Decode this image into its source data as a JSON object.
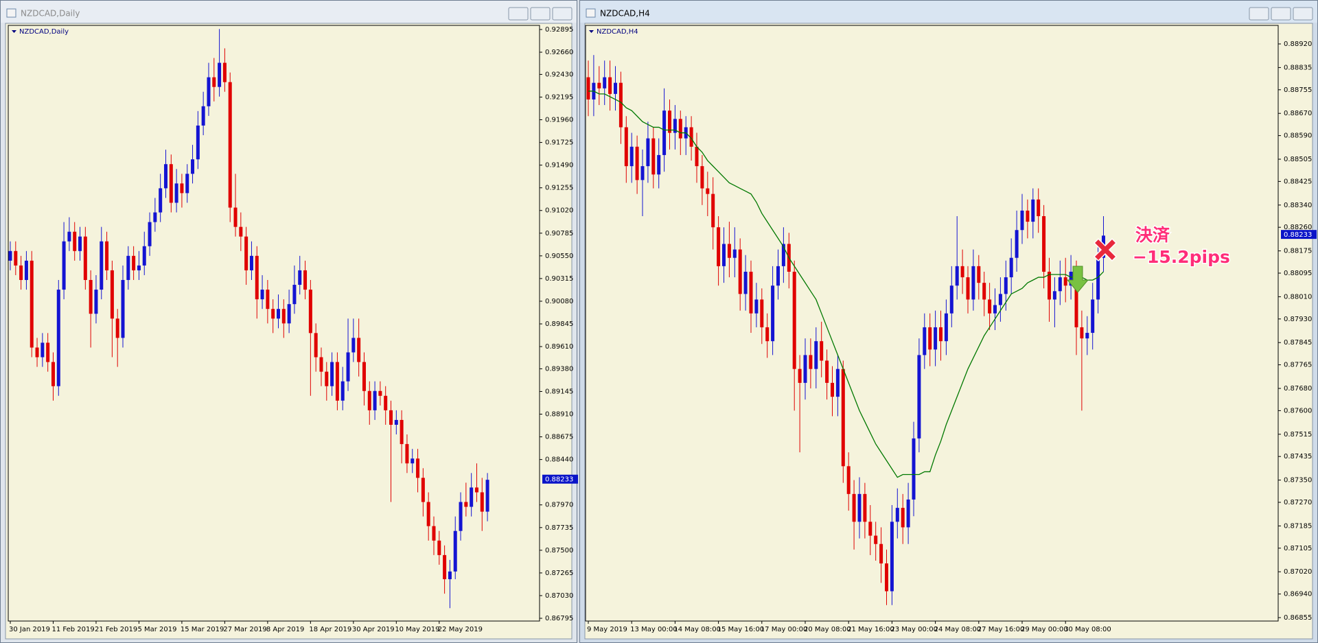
{
  "chart_data": [
    {
      "type": "candlestick",
      "title": "NZDCAD,Daily",
      "categories": [
        "30 Jan 2019",
        null,
        null,
        null,
        null,
        null,
        null,
        null,
        "11 Feb 2019",
        null,
        null,
        null,
        null,
        null,
        null,
        null,
        "21 Feb 2019",
        null,
        null,
        null,
        null,
        null,
        null,
        null,
        "5 Mar 2019",
        null,
        null,
        null,
        null,
        null,
        null,
        null,
        "15 Mar 2019",
        null,
        null,
        null,
        null,
        null,
        null,
        null,
        "27 Mar 2019",
        null,
        null,
        null,
        null,
        null,
        null,
        null,
        "8 Apr 2019",
        null,
        null,
        null,
        null,
        null,
        null,
        null,
        "18 Apr 2019",
        null,
        null,
        null,
        null,
        null,
        null,
        null,
        "30 Apr 2019",
        null,
        null,
        null,
        null,
        null,
        null,
        null,
        "10 May 2019",
        null,
        null,
        null,
        null,
        null,
        null,
        null,
        "22 May 2019",
        null,
        null,
        null,
        null,
        null,
        null,
        null,
        null,
        null
      ],
      "open": [
        0.905,
        0.906,
        0.9045,
        0.903,
        0.905,
        0.896,
        0.895,
        0.8965,
        0.8945,
        0.892,
        0.902,
        0.907,
        0.908,
        0.906,
        0.9075,
        0.903,
        0.8995,
        0.902,
        0.907,
        0.904,
        0.899,
        0.897,
        0.903,
        0.9055,
        0.904,
        0.9045,
        0.9065,
        0.909,
        0.91,
        0.9125,
        0.915,
        0.911,
        0.913,
        0.912,
        0.914,
        0.9155,
        0.919,
        0.921,
        0.924,
        0.923,
        0.9255,
        0.9235,
        0.9105,
        0.9085,
        0.9075,
        0.904,
        0.9055,
        0.901,
        0.902,
        0.9,
        0.899,
        0.9,
        0.8985,
        0.9005,
        0.9025,
        0.904,
        0.902,
        0.8975,
        0.895,
        0.8935,
        0.892,
        0.8945,
        0.8905,
        0.8925,
        0.8955,
        0.897,
        0.8945,
        0.8915,
        0.8895,
        0.8915,
        0.891,
        0.8895,
        0.888,
        0.8885,
        0.886,
        0.884,
        0.8845,
        0.8825,
        0.88,
        0.8775,
        0.876,
        0.8745,
        0.872,
        0.8728,
        0.877,
        0.88,
        0.8795,
        0.8815,
        0.881,
        0.879
      ],
      "high": [
        0.907,
        0.907,
        0.9055,
        0.906,
        0.906,
        0.897,
        0.8975,
        0.8975,
        0.8955,
        0.903,
        0.909,
        0.9095,
        0.909,
        0.9085,
        0.9085,
        0.904,
        0.9035,
        0.9085,
        0.908,
        0.905,
        0.9,
        0.9045,
        0.9065,
        0.9065,
        0.906,
        0.908,
        0.91,
        0.9115,
        0.914,
        0.9165,
        0.916,
        0.9145,
        0.914,
        0.915,
        0.917,
        0.9205,
        0.9225,
        0.9255,
        0.926,
        0.929,
        0.927,
        0.9245,
        0.914,
        0.91,
        0.9085,
        0.907,
        0.9065,
        0.9035,
        0.903,
        0.901,
        0.9015,
        0.901,
        0.902,
        0.9045,
        0.9055,
        0.905,
        0.903,
        0.8985,
        0.896,
        0.8945,
        0.8955,
        0.8955,
        0.894,
        0.899,
        0.899,
        0.899,
        0.8955,
        0.8925,
        0.8925,
        0.8925,
        0.892,
        0.8905,
        0.8895,
        0.8895,
        0.887,
        0.8855,
        0.8855,
        0.8835,
        0.881,
        0.8785,
        0.877,
        0.8755,
        0.874,
        0.8785,
        0.881,
        0.882,
        0.883,
        0.884,
        0.8825,
        0.883
      ],
      "low": [
        0.904,
        0.9035,
        0.902,
        0.902,
        0.895,
        0.894,
        0.894,
        0.8935,
        0.8905,
        0.891,
        0.901,
        0.906,
        0.905,
        0.905,
        0.902,
        0.896,
        0.8985,
        0.901,
        0.903,
        0.895,
        0.894,
        0.896,
        0.902,
        0.903,
        0.903,
        0.9035,
        0.9055,
        0.908,
        0.909,
        0.9115,
        0.91,
        0.91,
        0.9105,
        0.911,
        0.913,
        0.9145,
        0.918,
        0.92,
        0.9215,
        0.922,
        0.9225,
        0.909,
        0.9075,
        0.906,
        0.9025,
        0.903,
        0.899,
        0.9,
        0.8985,
        0.8975,
        0.898,
        0.897,
        0.8975,
        0.8995,
        0.9015,
        0.901,
        0.891,
        0.8935,
        0.892,
        0.8905,
        0.891,
        0.8895,
        0.8895,
        0.8915,
        0.8945,
        0.893,
        0.89,
        0.888,
        0.8885,
        0.89,
        0.888,
        0.88,
        0.887,
        0.884,
        0.883,
        0.883,
        0.881,
        0.8785,
        0.876,
        0.8745,
        0.8735,
        0.8705,
        0.869,
        0.872,
        0.876,
        0.8785,
        0.8785,
        0.88,
        0.877,
        0.878
      ],
      "close": [
        0.906,
        0.9045,
        0.903,
        0.905,
        0.896,
        0.895,
        0.8965,
        0.8945,
        0.892,
        0.902,
        0.907,
        0.908,
        0.906,
        0.9075,
        0.903,
        0.8995,
        0.902,
        0.907,
        0.904,
        0.899,
        0.897,
        0.903,
        0.9055,
        0.904,
        0.9045,
        0.9065,
        0.909,
        0.91,
        0.9125,
        0.915,
        0.911,
        0.913,
        0.912,
        0.914,
        0.9155,
        0.919,
        0.921,
        0.924,
        0.923,
        0.9255,
        0.9235,
        0.9105,
        0.9085,
        0.9075,
        0.904,
        0.9055,
        0.901,
        0.902,
        0.9,
        0.899,
        0.9,
        0.8985,
        0.9005,
        0.9025,
        0.904,
        0.902,
        0.8975,
        0.895,
        0.8935,
        0.892,
        0.8945,
        0.8905,
        0.8925,
        0.8955,
        0.897,
        0.8945,
        0.8915,
        0.8895,
        0.8915,
        0.891,
        0.8895,
        0.888,
        0.8885,
        0.886,
        0.884,
        0.8845,
        0.8825,
        0.88,
        0.8775,
        0.876,
        0.8745,
        0.872,
        0.8728,
        0.877,
        0.88,
        0.8795,
        0.8815,
        0.881,
        0.879,
        0.8823
      ],
      "up_color": "#1414d2",
      "down_color": "#e00000",
      "ylim": [
        0.86795,
        0.92895
      ],
      "yticks": [
        0.92895,
        {
          "value": 0.9266,
          "label": "0.92660"
        },
        {
          "value": 0.9243,
          "label": "0.92430"
        },
        0.92195,
        {
          "value": 0.9196,
          "label": "0.91960"
        },
        0.91725,
        {
          "value": 0.9149,
          "label": "0.91490"
        },
        0.91255,
        {
          "value": 0.9102,
          "label": "0.91020"
        },
        0.90785,
        {
          "value": 0.9055,
          "label": "0.90550"
        },
        0.90315,
        {
          "value": 0.9008,
          "label": "0.90080"
        },
        0.89845,
        {
          "value": 0.8961,
          "label": "0.89610"
        },
        {
          "value": 0.8938,
          "label": "0.89380"
        },
        0.89145,
        {
          "value": 0.8891,
          "label": "0.88910"
        },
        0.88675,
        {
          "value": 0.8844,
          "label": "0.88440"
        },
        {
          "value": 0.8797,
          "label": "0.87970"
        },
        0.87735,
        {
          "value": 0.875,
          "label": "0.87500"
        },
        0.87265,
        {
          "value": 0.8703,
          "label": "0.87030"
        },
        0.86795
      ],
      "current_price": 0.88233
    },
    {
      "type": "candlestick",
      "title": "NZDCAD,H4",
      "categories": [
        "9 May 2019",
        null,
        null,
        null,
        null,
        null,
        null,
        null,
        "13 May 00:00",
        null,
        null,
        null,
        null,
        null,
        null,
        null,
        "14 May 08:00",
        null,
        null,
        null,
        null,
        null,
        null,
        null,
        "15 May 16:00",
        null,
        null,
        null,
        null,
        null,
        null,
        null,
        "17 May 00:00",
        null,
        null,
        null,
        null,
        null,
        null,
        null,
        "20 May 08:00",
        null,
        null,
        null,
        null,
        null,
        null,
        null,
        "21 May 16:00",
        null,
        null,
        null,
        null,
        null,
        null,
        null,
        "23 May 00:00",
        null,
        null,
        null,
        null,
        null,
        null,
        null,
        "24 May 08:00",
        null,
        null,
        null,
        null,
        null,
        null,
        null,
        "27 May 16:00",
        null,
        null,
        null,
        null,
        null,
        null,
        null,
        "29 May 00:00",
        null,
        null,
        null,
        null,
        null,
        null,
        null,
        "30 May 08:00",
        null,
        null,
        null,
        null,
        null,
        null,
        null
      ],
      "open": [
        0.888,
        0.8872,
        0.8878,
        0.8876,
        0.888,
        0.8874,
        0.8878,
        0.8862,
        0.8848,
        0.8855,
        0.8843,
        0.8848,
        0.8858,
        0.8845,
        0.8852,
        0.8868,
        0.886,
        0.8865,
        0.8858,
        0.8862,
        0.8855,
        0.8848,
        0.884,
        0.8838,
        0.8826,
        0.8812,
        0.882,
        0.8815,
        0.8818,
        0.8802,
        0.881,
        0.8795,
        0.88,
        0.879,
        0.8785,
        0.8805,
        0.8812,
        0.882,
        0.881,
        0.8775,
        0.877,
        0.878,
        0.8775,
        0.8785,
        0.8778,
        0.877,
        0.8765,
        0.8775,
        0.874,
        0.873,
        0.872,
        0.873,
        0.872,
        0.8715,
        0.8712,
        0.8705,
        0.8695,
        0.872,
        0.8725,
        0.8718,
        0.8728,
        0.875,
        0.878,
        0.879,
        0.8782,
        0.879,
        0.8785,
        0.8795,
        0.8805,
        0.8812,
        0.8808,
        0.88,
        0.8812,
        0.8806,
        0.88,
        0.8795,
        0.8798,
        0.8802,
        0.8808,
        0.8815,
        0.8825,
        0.8832,
        0.8828,
        0.8836,
        0.883,
        0.881,
        0.88,
        0.8803,
        0.8808,
        0.8805,
        0.881,
        0.879,
        0.8786,
        0.8788,
        0.88,
        0.8815
      ],
      "high": [
        0.8886,
        0.8888,
        0.8884,
        0.8886,
        0.8886,
        0.8884,
        0.8882,
        0.8866,
        0.886,
        0.8859,
        0.8854,
        0.8864,
        0.8862,
        0.8858,
        0.8876,
        0.8872,
        0.887,
        0.8868,
        0.8866,
        0.8866,
        0.886,
        0.8852,
        0.8846,
        0.8844,
        0.883,
        0.8826,
        0.8828,
        0.8826,
        0.8822,
        0.8816,
        0.8814,
        0.8806,
        0.8804,
        0.8795,
        0.8812,
        0.8818,
        0.8826,
        0.8824,
        0.8814,
        0.878,
        0.8786,
        0.8786,
        0.879,
        0.8792,
        0.8782,
        0.8776,
        0.878,
        0.8778,
        0.8745,
        0.8735,
        0.8736,
        0.8734,
        0.8726,
        0.872,
        0.8718,
        0.871,
        0.8726,
        0.8732,
        0.873,
        0.8734,
        0.8756,
        0.8786,
        0.8795,
        0.8795,
        0.8796,
        0.8796,
        0.88,
        0.8812,
        0.883,
        0.8818,
        0.8812,
        0.8818,
        0.8816,
        0.881,
        0.8806,
        0.8804,
        0.8808,
        0.8814,
        0.8822,
        0.8832,
        0.8838,
        0.8836,
        0.884,
        0.884,
        0.8834,
        0.8815,
        0.8808,
        0.8814,
        0.8815,
        0.8816,
        0.8814,
        0.8796,
        0.8794,
        0.8806,
        0.882,
        0.883
      ],
      "low": [
        0.8866,
        0.8866,
        0.887,
        0.887,
        0.8868,
        0.8868,
        0.8856,
        0.8842,
        0.8842,
        0.8838,
        0.883,
        0.8842,
        0.884,
        0.884,
        0.8846,
        0.8854,
        0.8854,
        0.8852,
        0.8852,
        0.885,
        0.8842,
        0.8834,
        0.883,
        0.8818,
        0.8805,
        0.8806,
        0.8808,
        0.8808,
        0.8796,
        0.8796,
        0.8788,
        0.879,
        0.8784,
        0.8779,
        0.878,
        0.88,
        0.8806,
        0.8804,
        0.876,
        0.8745,
        0.8764,
        0.8768,
        0.8768,
        0.8772,
        0.8764,
        0.8758,
        0.8758,
        0.8734,
        0.8724,
        0.871,
        0.8714,
        0.8714,
        0.8708,
        0.8706,
        0.8698,
        0.869,
        0.869,
        0.8714,
        0.8712,
        0.8712,
        0.8722,
        0.8745,
        0.8775,
        0.8776,
        0.8776,
        0.8778,
        0.878,
        0.879,
        0.88,
        0.8802,
        0.8795,
        0.8796,
        0.88,
        0.8794,
        0.8789,
        0.8789,
        0.8792,
        0.8796,
        0.8802,
        0.881,
        0.882,
        0.8822,
        0.8822,
        0.8824,
        0.8804,
        0.8792,
        0.879,
        0.8798,
        0.8799,
        0.88,
        0.878,
        0.876,
        0.878,
        0.8782,
        0.8795,
        0.881
      ],
      "close": [
        0.8872,
        0.8878,
        0.8876,
        0.888,
        0.8874,
        0.8878,
        0.8862,
        0.8848,
        0.8855,
        0.8843,
        0.8848,
        0.8858,
        0.8845,
        0.8852,
        0.8868,
        0.886,
        0.8865,
        0.8858,
        0.8862,
        0.8855,
        0.8848,
        0.884,
        0.8838,
        0.8826,
        0.8812,
        0.882,
        0.8815,
        0.8818,
        0.8802,
        0.881,
        0.8795,
        0.88,
        0.879,
        0.8785,
        0.8805,
        0.8812,
        0.882,
        0.881,
        0.8775,
        0.877,
        0.878,
        0.8775,
        0.8785,
        0.8778,
        0.877,
        0.8765,
        0.8775,
        0.874,
        0.873,
        0.872,
        0.873,
        0.872,
        0.8715,
        0.8712,
        0.8705,
        0.8695,
        0.872,
        0.8725,
        0.8718,
        0.8728,
        0.875,
        0.878,
        0.879,
        0.8782,
        0.879,
        0.8785,
        0.8795,
        0.8805,
        0.8812,
        0.8808,
        0.88,
        0.8812,
        0.8806,
        0.88,
        0.8795,
        0.8798,
        0.8802,
        0.8808,
        0.8815,
        0.8825,
        0.8832,
        0.8828,
        0.8836,
        0.883,
        0.881,
        0.88,
        0.8803,
        0.8808,
        0.8805,
        0.881,
        0.879,
        0.8786,
        0.8788,
        0.88,
        0.8815,
        0.8823
      ],
      "moving_average": {
        "color": "#007800",
        "values": [
          0.8875,
          0.8875,
          0.8874,
          0.8874,
          0.8873,
          0.8872,
          0.8871,
          0.8869,
          0.8868,
          0.8866,
          0.8864,
          0.8863,
          0.8862,
          0.8862,
          0.8861,
          0.8861,
          0.8861,
          0.886,
          0.886,
          0.8858,
          0.8855,
          0.8853,
          0.885,
          0.8848,
          0.8846,
          0.8844,
          0.8842,
          0.8841,
          0.884,
          0.8839,
          0.8838,
          0.8835,
          0.8831,
          0.8828,
          0.8825,
          0.8822,
          0.8819,
          0.8815,
          0.8812,
          0.8809,
          0.8806,
          0.8803,
          0.88,
          0.8795,
          0.879,
          0.8785,
          0.878,
          0.8775,
          0.877,
          0.8765,
          0.876,
          0.8756,
          0.8752,
          0.8748,
          0.8745,
          0.8742,
          0.8739,
          0.8736,
          0.8737,
          0.8737,
          0.8737,
          0.8737,
          0.8738,
          0.8738,
          0.8744,
          0.8749,
          0.8755,
          0.876,
          0.8765,
          0.877,
          0.8775,
          0.8779,
          0.8783,
          0.8787,
          0.879,
          0.8793,
          0.8796,
          0.8799,
          0.8802,
          0.8803,
          0.8804,
          0.8806,
          0.8807,
          0.8808,
          0.8808,
          0.8809,
          0.8809,
          0.8809,
          0.8809,
          0.8808,
          0.8808,
          0.8808,
          0.8807,
          0.8807,
          0.8808,
          0.881
        ]
      },
      "up_color": "#1414d2",
      "down_color": "#e00000",
      "ylim": [
        0.86855,
        0.8892
      ],
      "yticks": [
        {
          "value": 0.8892,
          "label": "0.88920"
        },
        0.88835,
        0.88755,
        {
          "value": 0.8867,
          "label": "0.88670"
        },
        {
          "value": 0.8859,
          "label": "0.88590"
        },
        0.88505,
        0.88425,
        {
          "value": 0.8834,
          "label": "0.88340"
        },
        {
          "value": 0.8826,
          "label": "0.88260"
        },
        0.88175,
        0.88095,
        {
          "value": 0.8801,
          "label": "0.88010"
        },
        {
          "value": 0.8793,
          "label": "0.87930"
        },
        0.87845,
        0.87765,
        {
          "value": 0.8768,
          "label": "0.87680"
        },
        {
          "value": 0.876,
          "label": "0.87600"
        },
        0.87515,
        0.87435,
        {
          "value": 0.8735,
          "label": "0.87350"
        },
        {
          "value": 0.8727,
          "label": "0.87270"
        },
        0.87185,
        0.87105,
        {
          "value": 0.8702,
          "label": "0.87020"
        },
        {
          "value": 0.8694,
          "label": "0.86940"
        },
        0.86855
      ],
      "current_price": 0.88233,
      "annotations": [
        "決済",
        "−15.2pips"
      ]
    }
  ]
}
